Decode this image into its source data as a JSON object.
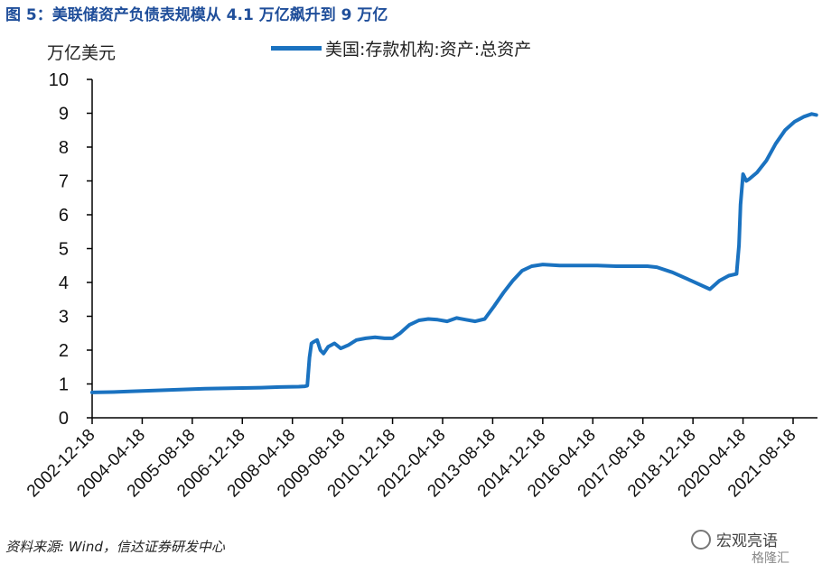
{
  "figure": {
    "title": "图 5：美联储资产负债表规模从 4.1 万亿飙升到 9 万亿",
    "source": "资料来源: Wind，信达证券研发中心",
    "watermark": "宏观亮语",
    "watermark2": "格隆汇"
  },
  "chart_data": {
    "type": "line",
    "ylabel": "万亿美元",
    "ylim": [
      0,
      10
    ],
    "yticks": [
      0,
      1,
      2,
      3,
      4,
      5,
      6,
      7,
      8,
      9,
      10
    ],
    "xticks": [
      "2002-12-18",
      "2004-04-18",
      "2005-08-18",
      "2006-12-18",
      "2008-04-18",
      "2009-08-18",
      "2010-12-18",
      "2012-04-18",
      "2013-08-18",
      "2014-12-18",
      "2016-04-18",
      "2017-08-18",
      "2018-12-18",
      "2020-04-18",
      "2021-08-18"
    ],
    "grid": false,
    "legend_position": "top",
    "line_color": "#1a72c0",
    "series": [
      {
        "name": "美国:存款机构:资产:总资产",
        "x": [
          "2002-12-18",
          "2003-06-18",
          "2003-12-18",
          "2004-06-18",
          "2004-12-18",
          "2005-06-18",
          "2005-12-18",
          "2006-06-18",
          "2006-12-18",
          "2007-06-18",
          "2007-12-18",
          "2008-06-18",
          "2008-08-18",
          "2008-09-10",
          "2008-10-01",
          "2008-10-20",
          "2008-11-15",
          "2008-12-15",
          "2009-01-15",
          "2009-02-15",
          "2009-04-01",
          "2009-06-01",
          "2009-08-01",
          "2009-10-15",
          "2010-01-01",
          "2010-04-01",
          "2010-07-01",
          "2010-10-01",
          "2010-12-18",
          "2011-03-01",
          "2011-06-01",
          "2011-09-01",
          "2011-12-01",
          "2012-03-01",
          "2012-06-01",
          "2012-09-01",
          "2012-12-01",
          "2013-03-01",
          "2013-06-01",
          "2013-09-01",
          "2013-12-01",
          "2014-03-01",
          "2014-06-01",
          "2014-09-01",
          "2014-12-18",
          "2015-06-01",
          "2015-12-01",
          "2016-06-01",
          "2016-12-01",
          "2017-06-01",
          "2017-10-01",
          "2018-01-01",
          "2018-06-01",
          "2018-12-01",
          "2019-06-01",
          "2019-09-01",
          "2019-12-01",
          "2020-02-15",
          "2020-03-10",
          "2020-03-25",
          "2020-04-18",
          "2020-05-20",
          "2020-06-15",
          "2020-09-01",
          "2020-12-01",
          "2021-03-01",
          "2021-06-01",
          "2021-09-01",
          "2021-12-01",
          "2022-02-15",
          "2022-04-01"
        ],
        "values": [
          0.75,
          0.76,
          0.78,
          0.8,
          0.82,
          0.84,
          0.86,
          0.87,
          0.88,
          0.89,
          0.91,
          0.92,
          0.93,
          0.95,
          1.78,
          2.2,
          2.25,
          2.3,
          2.0,
          1.9,
          2.1,
          2.2,
          2.05,
          2.15,
          2.3,
          2.35,
          2.38,
          2.35,
          2.35,
          2.5,
          2.75,
          2.88,
          2.92,
          2.9,
          2.85,
          2.95,
          2.9,
          2.85,
          2.92,
          3.3,
          3.7,
          4.05,
          4.35,
          4.48,
          4.53,
          4.5,
          4.5,
          4.5,
          4.48,
          4.48,
          4.48,
          4.45,
          4.3,
          4.05,
          3.8,
          4.05,
          4.2,
          4.25,
          5.1,
          6.3,
          7.2,
          7.0,
          7.05,
          7.25,
          7.6,
          8.1,
          8.5,
          8.75,
          8.9,
          8.98,
          8.95
        ]
      }
    ]
  }
}
